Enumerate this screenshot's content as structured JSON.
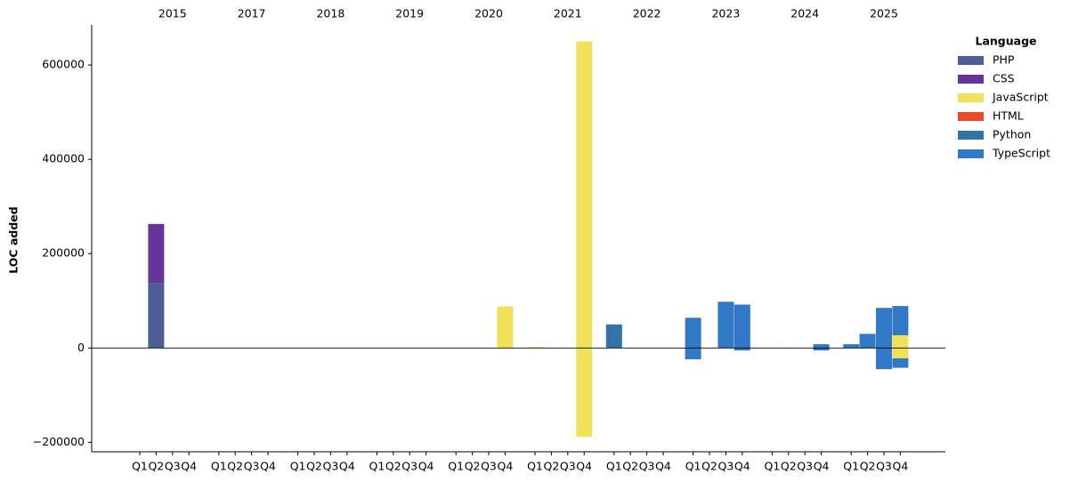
{
  "chart_data": {
    "type": "bar",
    "stacked": true,
    "y_label": "LOC added",
    "legend_title": "Language",
    "legend_position": "upper right outside",
    "groups": [
      "2015",
      "2017",
      "2018",
      "2019",
      "2020",
      "2021",
      "2022",
      "2023",
      "2024",
      "2025"
    ],
    "categories": [
      "Q1",
      "Q2",
      "Q3",
      "Q4",
      "Q1",
      "Q2",
      "Q3",
      "Q4",
      "Q1",
      "Q2",
      "Q3",
      "Q4",
      "Q1",
      "Q2",
      "Q3",
      "Q4",
      "Q1",
      "Q2",
      "Q3",
      "Q4",
      "Q1",
      "Q2",
      "Q3",
      "Q4",
      "Q1",
      "Q2",
      "Q3",
      "Q4",
      "Q1",
      "Q2",
      "Q3",
      "Q4",
      "Q1",
      "Q2",
      "Q3",
      "Q4",
      "Q1",
      "Q2",
      "Q3",
      "Q4"
    ],
    "ylim": [
      -220000,
      685000
    ],
    "yticks": [
      {
        "value": -200000,
        "label": "−200000"
      },
      0,
      200000,
      400000,
      600000
    ],
    "series": [
      {
        "name": "PHP",
        "color": "#4f5d95",
        "values": [
          0,
          138000,
          0,
          0,
          0,
          0,
          0,
          0,
          0,
          0,
          0,
          0,
          0,
          0,
          0,
          0,
          0,
          0,
          0,
          0,
          0,
          0,
          0,
          0,
          0,
          0,
          0,
          0,
          0,
          0,
          0,
          0,
          0,
          0,
          0,
          0,
          0,
          0,
          0,
          0
        ],
        "removed": [
          0,
          0,
          0,
          0,
          0,
          0,
          0,
          0,
          0,
          0,
          0,
          0,
          0,
          0,
          0,
          0,
          0,
          0,
          0,
          0,
          0,
          0,
          0,
          0,
          0,
          0,
          0,
          0,
          0,
          0,
          0,
          0,
          0,
          0,
          0,
          0,
          0,
          0,
          0,
          0
        ]
      },
      {
        "name": "CSS",
        "color": "#663399",
        "values": [
          0,
          125000,
          0,
          0,
          0,
          0,
          0,
          0,
          0,
          0,
          0,
          0,
          0,
          0,
          0,
          0,
          0,
          0,
          0,
          0,
          0,
          0,
          0,
          0,
          0,
          0,
          0,
          0,
          0,
          0,
          0,
          0,
          0,
          0,
          0,
          0,
          0,
          0,
          0,
          0
        ],
        "removed": [
          0,
          0,
          0,
          0,
          0,
          0,
          0,
          0,
          0,
          0,
          0,
          0,
          0,
          0,
          0,
          0,
          0,
          0,
          0,
          0,
          0,
          0,
          0,
          0,
          0,
          0,
          0,
          0,
          0,
          0,
          0,
          0,
          0,
          0,
          0,
          0,
          0,
          0,
          0,
          0
        ]
      },
      {
        "name": "JavaScript",
        "color": "#f1e05a",
        "values": [
          0,
          0,
          0,
          0,
          0,
          0,
          0,
          0,
          0,
          0,
          0,
          0,
          0,
          0,
          0,
          0,
          0,
          0,
          0,
          88000,
          2000,
          0,
          0,
          650000,
          0,
          0,
          0,
          0,
          0,
          0,
          0,
          0,
          0,
          1000,
          0,
          0,
          0,
          0,
          0,
          27000
        ],
        "removed": [
          0,
          0,
          0,
          0,
          0,
          0,
          0,
          0,
          0,
          0,
          0,
          0,
          0,
          0,
          0,
          0,
          0,
          0,
          0,
          0,
          0,
          0,
          0,
          -188000,
          0,
          0,
          0,
          0,
          0,
          0,
          0,
          0,
          0,
          0,
          0,
          0,
          0,
          0,
          0,
          -22000
        ]
      },
      {
        "name": "HTML",
        "color": "#e34c26",
        "values": [
          0,
          0,
          0,
          0,
          0,
          0,
          0,
          0,
          0,
          0,
          0,
          0,
          0,
          0,
          0,
          0,
          0,
          0,
          0,
          0,
          0,
          0,
          0,
          0,
          0,
          0,
          0,
          0,
          0,
          0,
          0,
          0,
          0,
          0,
          0,
          0,
          0,
          0,
          0,
          0
        ],
        "removed": [
          0,
          0,
          0,
          0,
          0,
          0,
          0,
          0,
          0,
          0,
          0,
          0,
          0,
          0,
          0,
          0,
          0,
          0,
          0,
          0,
          0,
          0,
          0,
          0,
          0,
          0,
          0,
          0,
          0,
          0,
          0,
          0,
          0,
          0,
          0,
          0,
          0,
          0,
          0,
          0
        ]
      },
      {
        "name": "Python",
        "color": "#3572a5",
        "values": [
          0,
          0,
          0,
          0,
          0,
          0,
          0,
          0,
          0,
          0,
          0,
          0,
          0,
          0,
          0,
          0,
          0,
          0,
          0,
          0,
          0,
          0,
          0,
          0,
          50000,
          0,
          0,
          0,
          0,
          0,
          0,
          0,
          0,
          0,
          0,
          0,
          0,
          0,
          0,
          0
        ],
        "removed": [
          0,
          0,
          0,
          0,
          0,
          0,
          0,
          0,
          0,
          0,
          0,
          0,
          0,
          0,
          0,
          0,
          0,
          0,
          0,
          0,
          0,
          0,
          0,
          0,
          0,
          0,
          0,
          0,
          0,
          0,
          0,
          0,
          0,
          0,
          0,
          0,
          0,
          0,
          0,
          0
        ]
      },
      {
        "name": "TypeScript",
        "color": "#3178c6",
        "values": [
          0,
          0,
          0,
          0,
          0,
          0,
          0,
          0,
          0,
          0,
          0,
          0,
          0,
          0,
          0,
          0,
          0,
          0,
          0,
          0,
          0,
          0,
          0,
          0,
          0,
          0,
          0,
          0,
          64000,
          0,
          98000,
          92000,
          0,
          0,
          0,
          8000,
          8000,
          30000,
          85000,
          62000
        ],
        "removed": [
          0,
          0,
          0,
          0,
          0,
          0,
          0,
          0,
          0,
          0,
          0,
          0,
          0,
          0,
          0,
          0,
          0,
          0,
          0,
          0,
          0,
          0,
          0,
          0,
          0,
          0,
          0,
          0,
          -24000,
          0,
          0,
          -5000,
          0,
          0,
          0,
          -5000,
          0,
          0,
          -45000,
          -20000
        ]
      }
    ]
  }
}
